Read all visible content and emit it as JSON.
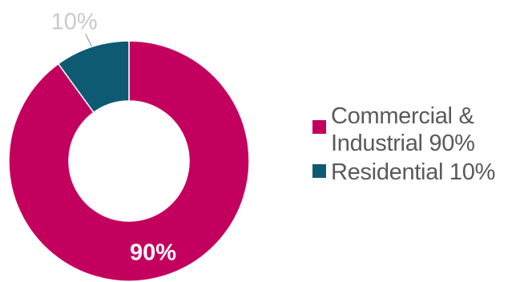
{
  "chart_data": {
    "type": "pie",
    "donut": true,
    "title": "",
    "legend_position": "right",
    "slices": [
      {
        "name": "Commercial & Industrial",
        "legend_label": "Commercial &\nIndustrial 90%",
        "value": 90,
        "data_label": "90%",
        "color": "#c4005f",
        "label_color": "#ffffff",
        "label_placement": "inside"
      },
      {
        "name": "Residential",
        "legend_label": "Residential 10%",
        "value": 10,
        "data_label": "10%",
        "color": "#0e5a73",
        "label_color": "#c9c9c9",
        "label_placement": "outside"
      }
    ]
  }
}
